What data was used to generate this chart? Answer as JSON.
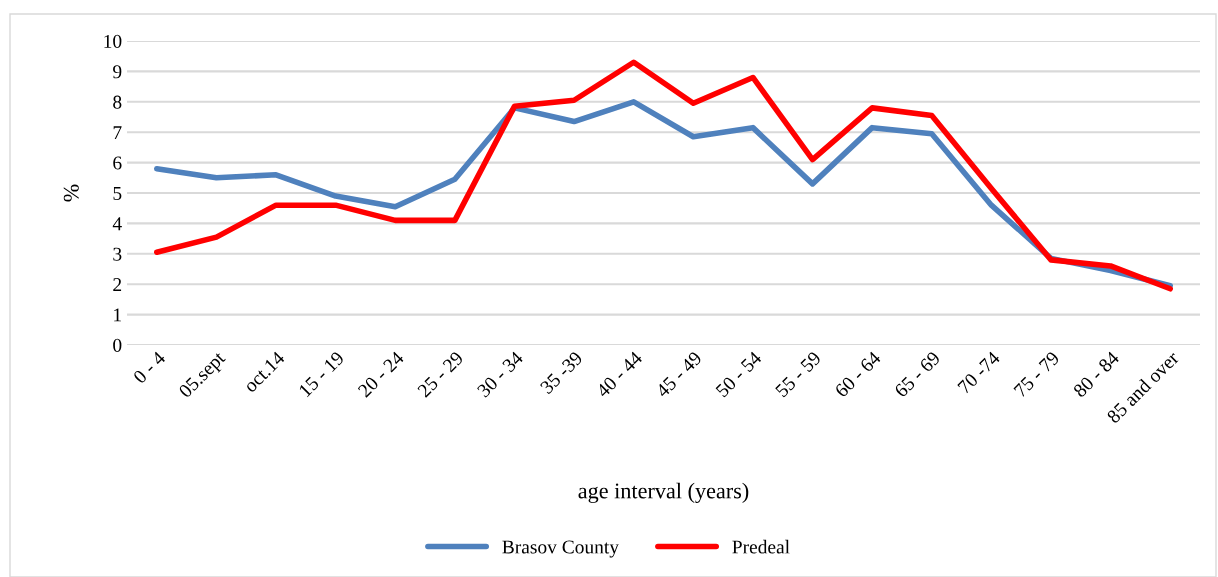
{
  "chart_data": {
    "type": "line",
    "xlabel": "age interval (years)",
    "ylabel": "%",
    "categories": [
      "0 - 4",
      "05.sept",
      "oct.14",
      "15 - 19",
      "20 - 24",
      "25 - 29",
      "30 - 34",
      "35 -39",
      "40 - 44",
      "45 - 49",
      "50 - 54",
      "55 - 59",
      "60 - 64",
      "65 - 69",
      "70 -74",
      "75 - 79",
      "80 - 84",
      "85 and over"
    ],
    "series": [
      {
        "name": "Brasov County",
        "color": "#4f81bd",
        "values": [
          5.8,
          5.5,
          5.6,
          4.9,
          4.55,
          5.45,
          7.8,
          7.35,
          8.0,
          6.85,
          7.15,
          5.3,
          7.15,
          6.95,
          4.6,
          2.85,
          2.45,
          1.95
        ]
      },
      {
        "name": "Predeal",
        "color": "#ff0000",
        "values": [
          3.05,
          3.55,
          4.6,
          4.6,
          4.1,
          4.1,
          7.85,
          8.05,
          9.3,
          7.95,
          8.8,
          6.1,
          7.8,
          7.55,
          5.15,
          2.8,
          2.6,
          1.85
        ]
      }
    ],
    "ylim": [
      0,
      10
    ],
    "yticks": [
      0,
      1,
      2,
      3,
      4,
      5,
      6,
      7,
      8,
      9,
      10
    ],
    "grid": "y",
    "legend": "bottom",
    "marker": "none",
    "line_style": "solid"
  }
}
